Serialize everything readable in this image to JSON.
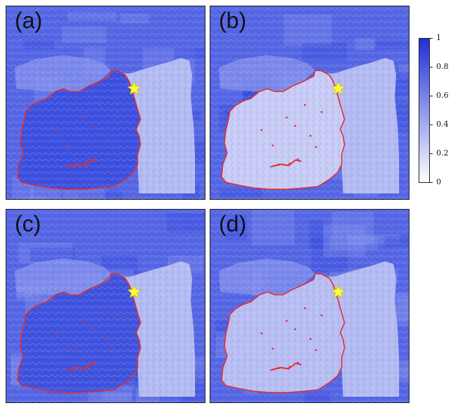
{
  "panels": [
    {
      "id": "a",
      "label": "(a)",
      "inside_color": "#3c4fdf"
    },
    {
      "id": "b",
      "label": "(b)",
      "inside_color": "#c9cdf6"
    },
    {
      "id": "c",
      "label": "(c)",
      "inside_color": "#3f52de"
    },
    {
      "id": "d",
      "label": "(d)",
      "inside_color": "#b9bff3"
    }
  ],
  "colorbar": {
    "ticks": [
      "1",
      "0.8",
      "0.6",
      "0.4",
      "0.2",
      "0"
    ],
    "colors": {
      "max": "#1f2fd8",
      "min": "#ffffff"
    }
  },
  "colors": {
    "background_field": "#5566e4",
    "east_region": "#b5bcf2",
    "boundary": "#e0302e",
    "star": "#ffff2e",
    "star_stroke": "#c8b000"
  },
  "markers": {
    "star_icon": "star-icon"
  }
}
